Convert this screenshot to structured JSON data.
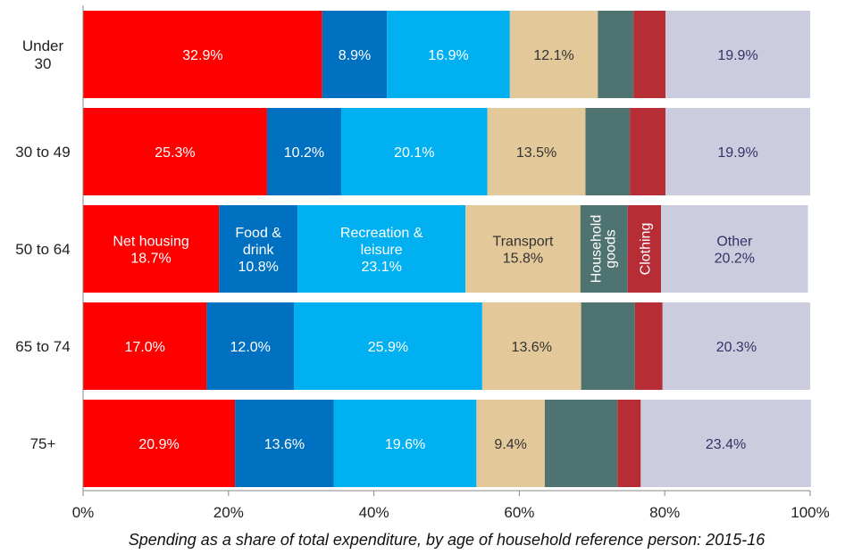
{
  "chart_data": {
    "type": "bar",
    "orientation": "horizontal",
    "stacked": true,
    "xlabel": "Spending as a share of total expenditure, by age of household reference person: 2015-16",
    "xlim": [
      0,
      100
    ],
    "x_ticks": [
      "0%",
      "20%",
      "40%",
      "60%",
      "80%",
      "100%"
    ],
    "categories": [
      "Under 30",
      "30 to 49",
      "50 to 64",
      "65 to 74",
      "75+"
    ],
    "grid": false,
    "series": [
      {
        "name": "Net housing",
        "color": "#ff0000",
        "values": [
          32.9,
          25.3,
          18.7,
          17.0,
          20.9
        ]
      },
      {
        "name": "Food & drink",
        "color": "#0070c0",
        "values": [
          8.9,
          10.2,
          10.8,
          12.0,
          13.6
        ]
      },
      {
        "name": "Recreation & leisure",
        "color": "#00b0f0",
        "values": [
          16.9,
          20.1,
          23.1,
          25.9,
          19.6
        ]
      },
      {
        "name": "Transport",
        "color": "#e3c899",
        "values": [
          12.1,
          13.5,
          15.8,
          13.6,
          9.4
        ]
      },
      {
        "name": "Household goods",
        "color": "#4e7370",
        "values": [
          4.9,
          6.1,
          6.5,
          7.4,
          10.0
        ]
      },
      {
        "name": "Clothing",
        "color": "#b72d35",
        "values": [
          4.4,
          4.9,
          4.6,
          3.8,
          3.2
        ]
      },
      {
        "name": "Other",
        "color": "#ccccdf",
        "values": [
          19.9,
          19.9,
          20.2,
          20.3,
          23.4
        ]
      }
    ],
    "data_labels": [
      [
        "32.9%",
        "8.9%",
        "16.9%",
        "12.1%",
        "",
        "",
        "19.9%"
      ],
      [
        "25.3%",
        "10.2%",
        "20.1%",
        "13.5%",
        "",
        "",
        "19.9%"
      ],
      [
        "Net housing\n18.7%",
        "Food &\ndrink\n10.8%",
        "Recreation &\nleisure\n23.1%",
        "Transport\n15.8%",
        "Household\ngoods",
        "Clothing",
        "Other\n20.2%"
      ],
      [
        "17.0%",
        "12.0%",
        "25.9%",
        "13.6%",
        "",
        "",
        "20.3%"
      ],
      [
        "20.9%",
        "13.6%",
        "19.6%",
        "9.4%",
        "",
        "",
        "23.4%"
      ]
    ],
    "label_colors": [
      "#ffffff",
      "#ffffff",
      "#ffffff",
      "#333333",
      "#ffffff",
      "#ffffff",
      "#333366"
    ]
  }
}
